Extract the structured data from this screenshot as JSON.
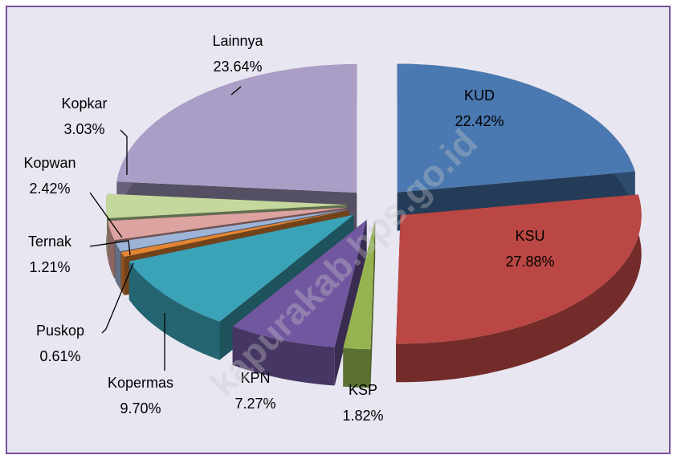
{
  "chart_data": {
    "type": "pie",
    "categories": [
      "KUD",
      "KSU",
      "KSP",
      "KPN",
      "Kopermas",
      "Puskop",
      "Ternak",
      "Kopwan",
      "Kopkar",
      "Lainnya"
    ],
    "values": [
      22.42,
      27.88,
      1.82,
      7.27,
      9.7,
      0.61,
      1.21,
      2.42,
      3.03,
      23.64
    ],
    "value_labels": [
      "22.42%",
      "27.88%",
      "1.82%",
      "7.27%",
      "9.70%",
      "0.61%",
      "1.21%",
      "2.42%",
      "3.03%",
      "23.64%"
    ],
    "colors": [
      "#4a78b0",
      "#bb4744",
      "#95b451",
      "#7157a0",
      "#3ba3b8",
      "#e38533",
      "#9db4d8",
      "#dda3a1",
      "#c4d89d",
      "#aa9dc6"
    ],
    "watermark": "kapurakab.bps.go.id"
  }
}
